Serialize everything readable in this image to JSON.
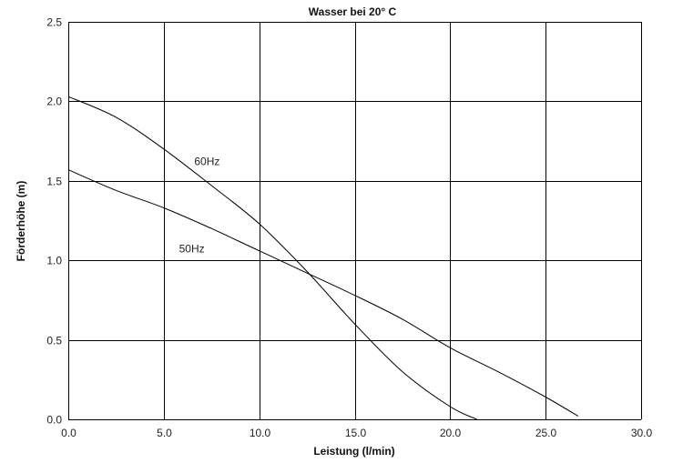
{
  "chart_data": {
    "type": "line",
    "title": "Wasser bei 20° C",
    "xlabel": "Leistung (l/min)",
    "ylabel": "Förderhöhe (m)",
    "xlim": [
      0,
      30
    ],
    "ylim": [
      0,
      2.5
    ],
    "x_ticks": [
      "0.0",
      "5.0",
      "10.0",
      "15.0",
      "20.0",
      "25.0",
      "30.0"
    ],
    "y_ticks": [
      "0.0",
      "0.5",
      "1.0",
      "1.5",
      "2.0",
      "2.5"
    ],
    "grid": true,
    "series": [
      {
        "name": "60Hz",
        "label_at": [
          6.6,
          1.6
        ],
        "points": [
          [
            0,
            2.03
          ],
          [
            2.5,
            1.9
          ],
          [
            5,
            1.7
          ],
          [
            7.5,
            1.47
          ],
          [
            10,
            1.23
          ],
          [
            12.5,
            0.93
          ],
          [
            15,
            0.6
          ],
          [
            17.5,
            0.3
          ],
          [
            20,
            0.08
          ],
          [
            21.4,
            0.0
          ]
        ]
      },
      {
        "name": "50Hz",
        "label_at": [
          5.8,
          1.05
        ],
        "points": [
          [
            0,
            1.57
          ],
          [
            2.5,
            1.44
          ],
          [
            5,
            1.33
          ],
          [
            7.5,
            1.2
          ],
          [
            10,
            1.06
          ],
          [
            12.5,
            0.92
          ],
          [
            15,
            0.78
          ],
          [
            17.5,
            0.63
          ],
          [
            20,
            0.45
          ],
          [
            22.5,
            0.3
          ],
          [
            25,
            0.14
          ],
          [
            26.7,
            0.02
          ]
        ]
      }
    ]
  }
}
